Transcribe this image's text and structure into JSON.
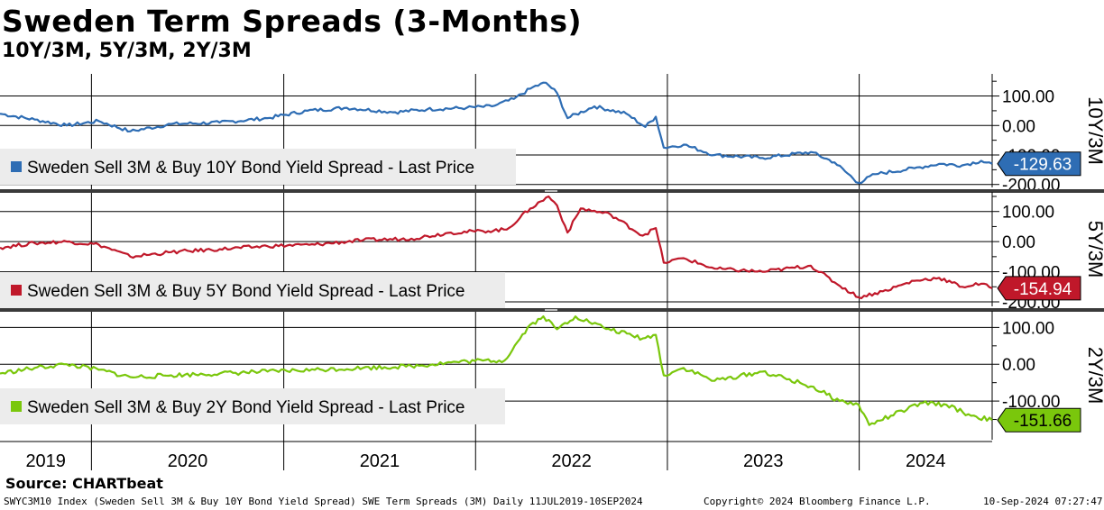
{
  "header": {
    "title": "Sweden Term Spreads (3-Months)",
    "subtitle": "10Y/3M, 5Y/3M, 2Y/3M"
  },
  "footer": {
    "source": "Source: CHARTbeat",
    "security": "SWYC3M10 Index (Sweden Sell 3M & Buy 10Y Bond Yield Spread) SWE Term Spreads (3M)  Daily 11JUL2019-10SEP2024",
    "copyright": "Copyright© 2024 Bloomberg Finance L.P.",
    "timestamp": "10-Sep-2024 07:27:47"
  },
  "chart_data": {
    "type": "line",
    "x_range": [
      "2019-07-11",
      "2024-09-10"
    ],
    "year_labels": [
      "2019",
      "2020",
      "2021",
      "2022",
      "2023",
      "2024"
    ],
    "grid": true,
    "legend_placement": "left",
    "panels": [
      {
        "axis_label": "10Y/3M",
        "legend": "Sweden Sell 3M & Buy 10Y Bond Yield Spread - Last Price",
        "last_value": "-129.63",
        "color": "#2e6db4",
        "ylim": [
          -210,
          175
        ],
        "y_ticks": [
          "100.00",
          "0.00",
          "-100.00",
          "-200.00"
        ],
        "series": [
          {
            "x": "2019-07-11",
            "y": 40
          },
          {
            "x": "2019-09-15",
            "y": 20
          },
          {
            "x": "2019-11-15",
            "y": 0
          },
          {
            "x": "2020-01-15",
            "y": 15
          },
          {
            "x": "2020-03-15",
            "y": -20
          },
          {
            "x": "2020-06-01",
            "y": 5
          },
          {
            "x": "2020-09-01",
            "y": 10
          },
          {
            "x": "2020-12-01",
            "y": 25
          },
          {
            "x": "2021-02-15",
            "y": 50
          },
          {
            "x": "2021-05-01",
            "y": 60
          },
          {
            "x": "2021-08-01",
            "y": 45
          },
          {
            "x": "2021-10-01",
            "y": 55
          },
          {
            "x": "2021-12-15",
            "y": 60
          },
          {
            "x": "2022-02-01",
            "y": 65
          },
          {
            "x": "2022-03-15",
            "y": 90
          },
          {
            "x": "2022-04-20",
            "y": 130
          },
          {
            "x": "2022-05-15",
            "y": 145
          },
          {
            "x": "2022-06-05",
            "y": 110
          },
          {
            "x": "2022-06-25",
            "y": 25
          },
          {
            "x": "2022-08-15",
            "y": 65
          },
          {
            "x": "2022-10-15",
            "y": 40
          },
          {
            "x": "2022-11-20",
            "y": -5
          },
          {
            "x": "2022-12-10",
            "y": 30
          },
          {
            "x": "2022-12-25",
            "y": -75
          },
          {
            "x": "2023-02-01",
            "y": -65
          },
          {
            "x": "2023-04-01",
            "y": -100
          },
          {
            "x": "2023-07-01",
            "y": -110
          },
          {
            "x": "2023-10-01",
            "y": -90
          },
          {
            "x": "2023-11-15",
            "y": -125
          },
          {
            "x": "2023-12-31",
            "y": -195
          },
          {
            "x": "2024-02-01",
            "y": -165
          },
          {
            "x": "2024-04-15",
            "y": -145
          },
          {
            "x": "2024-06-01",
            "y": -130
          },
          {
            "x": "2024-07-15",
            "y": -135
          },
          {
            "x": "2024-08-20",
            "y": -120
          },
          {
            "x": "2024-09-10",
            "y": -129.63
          }
        ]
      },
      {
        "axis_label": "5Y/3M",
        "legend": "Sweden Sell 3M & Buy 5Y Bond Yield Spread - Last Price",
        "last_value": "-154.94",
        "color": "#c0182a",
        "ylim": [
          -215,
          165
        ],
        "y_ticks": [
          "100.00",
          "0.00",
          "-100.00",
          "-200.00"
        ],
        "series": [
          {
            "x": "2019-07-11",
            "y": -20
          },
          {
            "x": "2019-09-15",
            "y": -5
          },
          {
            "x": "2019-11-15",
            "y": 0
          },
          {
            "x": "2020-01-15",
            "y": -10
          },
          {
            "x": "2020-03-15",
            "y": -50
          },
          {
            "x": "2020-06-01",
            "y": -35
          },
          {
            "x": "2020-09-01",
            "y": -25
          },
          {
            "x": "2020-12-01",
            "y": -15
          },
          {
            "x": "2021-03-01",
            "y": -10
          },
          {
            "x": "2021-06-01",
            "y": 5
          },
          {
            "x": "2021-09-01",
            "y": 10
          },
          {
            "x": "2021-11-15",
            "y": 30
          },
          {
            "x": "2022-01-15",
            "y": 35
          },
          {
            "x": "2022-03-01",
            "y": 40
          },
          {
            "x": "2022-04-15",
            "y": 110
          },
          {
            "x": "2022-05-20",
            "y": 150
          },
          {
            "x": "2022-06-05",
            "y": 120
          },
          {
            "x": "2022-06-25",
            "y": 30
          },
          {
            "x": "2022-07-20",
            "y": 110
          },
          {
            "x": "2022-09-15",
            "y": 90
          },
          {
            "x": "2022-11-15",
            "y": 20
          },
          {
            "x": "2022-12-10",
            "y": 45
          },
          {
            "x": "2022-12-25",
            "y": -70
          },
          {
            "x": "2023-02-01",
            "y": -55
          },
          {
            "x": "2023-04-01",
            "y": -90
          },
          {
            "x": "2023-07-01",
            "y": -100
          },
          {
            "x": "2023-10-01",
            "y": -80
          },
          {
            "x": "2023-11-15",
            "y": -135
          },
          {
            "x": "2023-12-31",
            "y": -185
          },
          {
            "x": "2024-02-15",
            "y": -165
          },
          {
            "x": "2024-04-15",
            "y": -130
          },
          {
            "x": "2024-06-01",
            "y": -120
          },
          {
            "x": "2024-07-15",
            "y": -150
          },
          {
            "x": "2024-08-20",
            "y": -140
          },
          {
            "x": "2024-09-10",
            "y": -154.94
          }
        ]
      },
      {
        "axis_label": "2Y/3M",
        "legend": "Sweden Sell 3M & Buy 2Y Bond Yield Spread - Last Price",
        "last_value": "-151.66",
        "color": "#7ac70c",
        "ylim": [
          -205,
          145
        ],
        "y_ticks": [
          "100.00",
          "0.00",
          "-100.00"
        ],
        "series": [
          {
            "x": "2019-07-11",
            "y": -25
          },
          {
            "x": "2019-09-15",
            "y": -10
          },
          {
            "x": "2019-11-15",
            "y": 0
          },
          {
            "x": "2020-01-15",
            "y": -15
          },
          {
            "x": "2020-03-15",
            "y": -35
          },
          {
            "x": "2020-06-01",
            "y": -30
          },
          {
            "x": "2020-09-01",
            "y": -25
          },
          {
            "x": "2020-12-01",
            "y": -20
          },
          {
            "x": "2021-03-01",
            "y": -15
          },
          {
            "x": "2021-06-01",
            "y": -10
          },
          {
            "x": "2021-09-01",
            "y": -5
          },
          {
            "x": "2021-11-15",
            "y": 5
          },
          {
            "x": "2022-01-15",
            "y": 10
          },
          {
            "x": "2022-02-25",
            "y": 10
          },
          {
            "x": "2022-04-10",
            "y": 100
          },
          {
            "x": "2022-05-10",
            "y": 130
          },
          {
            "x": "2022-06-05",
            "y": 95
          },
          {
            "x": "2022-07-10",
            "y": 130
          },
          {
            "x": "2022-09-01",
            "y": 100
          },
          {
            "x": "2022-11-15",
            "y": 70
          },
          {
            "x": "2022-12-10",
            "y": 80
          },
          {
            "x": "2022-12-25",
            "y": -30
          },
          {
            "x": "2023-02-01",
            "y": -10
          },
          {
            "x": "2023-04-01",
            "y": -45
          },
          {
            "x": "2023-07-01",
            "y": -20
          },
          {
            "x": "2023-10-01",
            "y": -60
          },
          {
            "x": "2023-11-25",
            "y": -100
          },
          {
            "x": "2023-12-31",
            "y": -110
          },
          {
            "x": "2024-01-20",
            "y": -165
          },
          {
            "x": "2024-03-01",
            "y": -140
          },
          {
            "x": "2024-05-01",
            "y": -105
          },
          {
            "x": "2024-06-15",
            "y": -110
          },
          {
            "x": "2024-08-01",
            "y": -140
          },
          {
            "x": "2024-09-10",
            "y": -151.66
          }
        ]
      }
    ]
  }
}
